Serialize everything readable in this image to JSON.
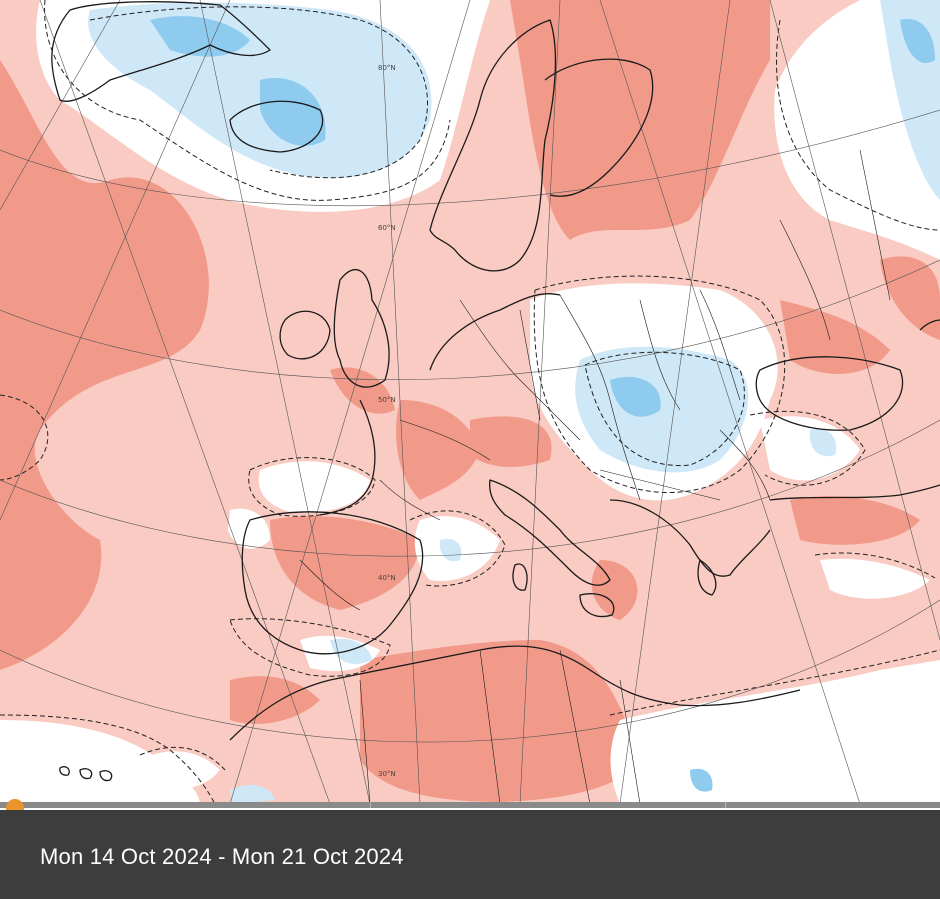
{
  "map": {
    "lat_labels": [
      "80°N",
      "60°N",
      "50°N",
      "40°N",
      "30°N"
    ],
    "colors": {
      "warm_light": "#f9cbc2",
      "warm_strong": "#f29a8a",
      "neutral": "#ffffff",
      "cool_light": "#cfe8f7",
      "cool_strong": "#8ecbef",
      "coastline": "#1a1a1a"
    }
  },
  "timeline": {
    "accent": "#e8962b",
    "track": "#8a8a8a"
  },
  "footer": {
    "date_range": "Mon 14 Oct 2024 - Mon 21 Oct 2024",
    "background": "#3d3d3d"
  }
}
